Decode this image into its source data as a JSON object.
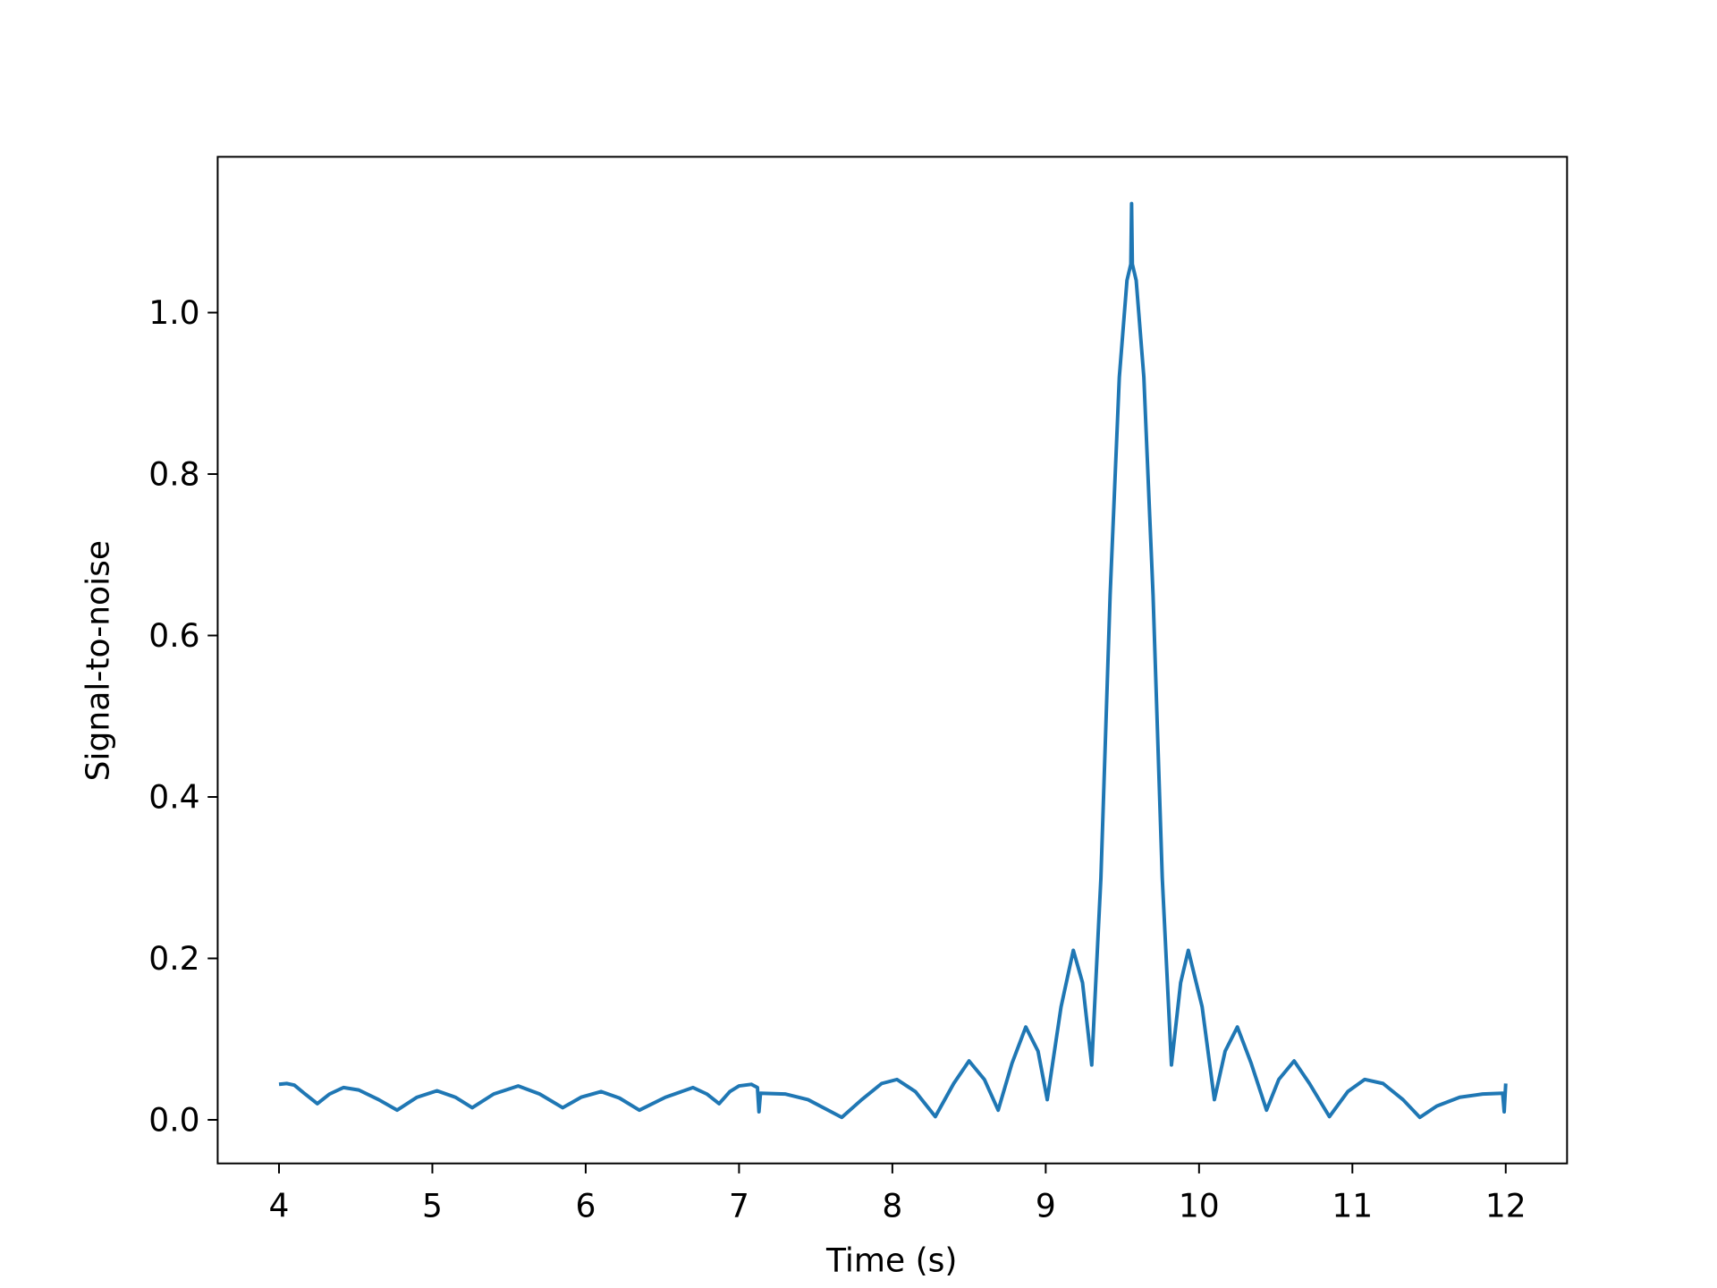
{
  "chart_data": {
    "type": "line",
    "xlabel": "Time (s)",
    "ylabel": "Signal-to-noise",
    "xlim": [
      3.6,
      12.4
    ],
    "ylim": [
      -0.054,
      1.193
    ],
    "xticks": [
      4,
      5,
      6,
      7,
      8,
      9,
      10,
      11,
      12
    ],
    "yticks": [
      {
        "value": 0,
        "label": "0.0"
      },
      {
        "value": 0.2,
        "label": "0.2"
      },
      {
        "value": 0.4,
        "label": "0.4"
      },
      {
        "value": 0.6,
        "label": "0.6"
      },
      {
        "value": 0.8,
        "label": "0.8"
      },
      {
        "value": 1.0,
        "label": "1.0"
      }
    ],
    "grid": false,
    "series": [
      {
        "color": "#1f77b4",
        "x": [
          4.0,
          4.05,
          4.1,
          4.17,
          4.25,
          4.33,
          4.42,
          4.52,
          4.65,
          4.77,
          4.9,
          5.03,
          5.15,
          5.26,
          5.4,
          5.56,
          5.7,
          5.85,
          5.97,
          6.1,
          6.22,
          6.35,
          6.52,
          6.7,
          6.79,
          6.87,
          6.94,
          7.0,
          7.08,
          7.12,
          7.13,
          7.14,
          7.3,
          7.45,
          7.58,
          7.67,
          7.8,
          7.93,
          8.03,
          8.15,
          8.28,
          8.4,
          8.5,
          8.6,
          8.69,
          8.78,
          8.87,
          8.95,
          9.01,
          9.1,
          9.18,
          9.24,
          9.3,
          9.36,
          9.42,
          9.48,
          9.53,
          9.555,
          9.56,
          9.565,
          9.59,
          9.64,
          9.7,
          9.76,
          9.82,
          9.88,
          9.93,
          10.02,
          10.1,
          10.17,
          10.25,
          10.34,
          10.44,
          10.52,
          10.62,
          10.72,
          10.85,
          10.97,
          11.08,
          11.2,
          11.33,
          11.44,
          11.55,
          11.7,
          11.85,
          11.98,
          11.99,
          12.0
        ],
        "values": [
          0.044,
          0.045,
          0.043,
          0.032,
          0.02,
          0.032,
          0.04,
          0.037,
          0.025,
          0.012,
          0.028,
          0.036,
          0.028,
          0.015,
          0.032,
          0.042,
          0.032,
          0.015,
          0.028,
          0.035,
          0.027,
          0.012,
          0.028,
          0.04,
          0.032,
          0.02,
          0.035,
          0.042,
          0.044,
          0.04,
          0.01,
          0.033,
          0.032,
          0.025,
          0.012,
          0.003,
          0.025,
          0.045,
          0.05,
          0.035,
          0.004,
          0.045,
          0.073,
          0.05,
          0.012,
          0.07,
          0.115,
          0.085,
          0.025,
          0.14,
          0.21,
          0.17,
          0.068,
          0.3,
          0.65,
          0.92,
          1.04,
          1.06,
          1.135,
          1.06,
          1.04,
          0.92,
          0.65,
          0.3,
          0.068,
          0.17,
          0.21,
          0.14,
          0.025,
          0.085,
          0.115,
          0.07,
          0.012,
          0.05,
          0.073,
          0.045,
          0.004,
          0.035,
          0.05,
          0.045,
          0.025,
          0.003,
          0.017,
          0.028,
          0.032,
          0.033,
          0.01,
          0.045
        ]
      }
    ]
  }
}
